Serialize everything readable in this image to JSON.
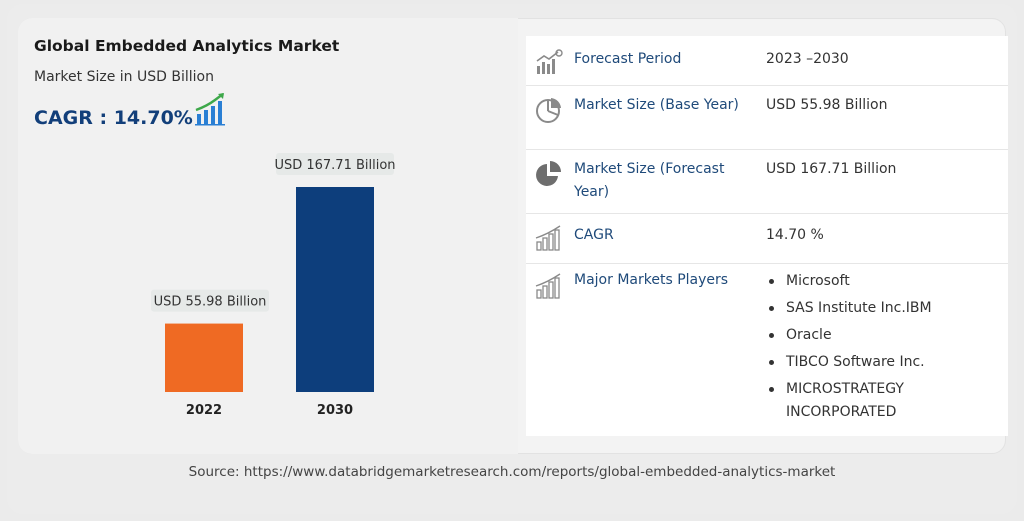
{
  "header": {
    "title": "Global Embedded Analytics Market",
    "subtitle": "Market Size in USD Billion",
    "cagr_label": "CAGR : 14.70%"
  },
  "chart_data": {
    "type": "bar",
    "categories": [
      "2022",
      "2030"
    ],
    "values": [
      55.98,
      167.71
    ],
    "data_labels": [
      "USD 55.98 Billion",
      "USD 167.71 Billion"
    ],
    "colors": [
      "#ef6a23",
      "#0d3e7c"
    ],
    "ylim": [
      0,
      200
    ],
    "grid": false,
    "legend": "none"
  },
  "table": {
    "rows": [
      {
        "icon": "forecast-chart-icon",
        "label": "Forecast Period",
        "value": "2023 –2030"
      },
      {
        "icon": "pie-outline-icon",
        "label": "Market Size (Base Year)",
        "value": "USD 55.98 Billion"
      },
      {
        "icon": "pie-solid-icon",
        "label": "Market Size (Forecast Year)",
        "value": "USD 167.71 Billion"
      },
      {
        "icon": "growth-bars-icon",
        "label": "CAGR",
        "value": "14.70 %"
      }
    ],
    "players_label": "Major Markets Players",
    "players_icon": "growth-bars-icon",
    "players": [
      "Microsoft",
      "SAS Institute Inc.IBM",
      "Oracle",
      "TIBCO Software Inc.",
      "MICROSTRATEGY INCORPORATED"
    ]
  },
  "source": "Source: https://www.databridgemarketresearch.com/reports/global-embedded-analytics-market",
  "accent": {
    "label": "#1f4a7a",
    "cagr": "#123f7a",
    "icon": "#8a8a8a",
    "cagr_icon_bars": "#2a7fd4",
    "cagr_icon_arrow": "#3ea84a"
  }
}
